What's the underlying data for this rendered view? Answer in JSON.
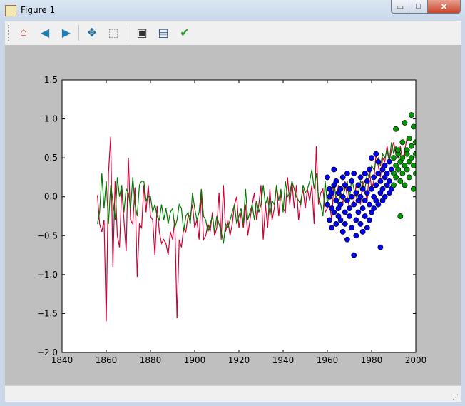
{
  "window": {
    "title": "Figure 1",
    "minimize_glyph": "▭",
    "maximize_glyph": "□",
    "close_glyph": "✕"
  },
  "toolbar": {
    "buttons": [
      {
        "name": "home",
        "icon": "home-icon",
        "glyph": "⌂",
        "color": "#c0392b"
      },
      {
        "name": "back",
        "icon": "back-arrow-icon",
        "glyph": "◀",
        "color": "#1f7fb5"
      },
      {
        "name": "forward",
        "icon": "forward-arrow-icon",
        "glyph": "▶",
        "color": "#1f7fb5"
      },
      {
        "name": "pan",
        "icon": "pan-move-icon",
        "glyph": "✥",
        "color": "#1d6fa5"
      },
      {
        "name": "zoom",
        "icon": "zoom-rectangle-icon",
        "glyph": "⬚",
        "color": "#6b8fb0"
      },
      {
        "name": "configure-subplots",
        "icon": "subplots-icon",
        "glyph": "▣",
        "color": "#333333"
      },
      {
        "name": "save",
        "icon": "save-floppy-icon",
        "glyph": "▤",
        "color": "#2c4e78"
      },
      {
        "name": "edit-axis",
        "icon": "checkmark-icon",
        "glyph": "✔",
        "color": "#22a322"
      }
    ]
  },
  "chart_data": {
    "type": "line",
    "title": "",
    "xlabel": "",
    "ylabel": "",
    "xlim": [
      1840,
      2000
    ],
    "ylim": [
      -2.0,
      1.5
    ],
    "xticks": [
      1840,
      1860,
      1880,
      1900,
      1920,
      1940,
      1960,
      1980,
      2000
    ],
    "yticks": [
      -2.0,
      -1.5,
      -1.0,
      -0.5,
      0.0,
      0.5,
      1.0,
      1.5
    ],
    "xtick_labels": [
      "1840",
      "1860",
      "1880",
      "1900",
      "1920",
      "1940",
      "1960",
      "1980",
      "2000"
    ],
    "ytick_labels": [
      "−2.0",
      "−1.5",
      "−1.0",
      "−0.5",
      "0.0",
      "0.5",
      "1.0",
      "1.5"
    ],
    "grid": false,
    "colors": {
      "red_line": "#cc0033",
      "green_line": "#007a00",
      "blue_points": "#0000ee",
      "green_points": "#009900",
      "axes_bg": "#ffffff",
      "figure_bg": "#bfbfbf"
    },
    "series": [
      {
        "kind": "line",
        "color_key": "red_line",
        "x_start": 1856,
        "y": [
          0.02,
          -0.35,
          -0.45,
          -0.3,
          -1.6,
          0.3,
          0.77,
          -0.9,
          0.2,
          -0.5,
          -0.65,
          0.1,
          -0.3,
          -0.7,
          0.5,
          -0.3,
          -0.35,
          0.12,
          -1.03,
          -0.35,
          -0.4,
          0.15,
          -0.2,
          0.15,
          -0.25,
          -0.3,
          -0.75,
          -0.12,
          -0.45,
          -0.6,
          -0.55,
          -0.6,
          -0.75,
          -0.45,
          -0.55,
          -0.3,
          -1.56,
          -0.55,
          -0.65,
          -0.4,
          -0.45,
          -0.25,
          -0.25,
          -0.1,
          -0.4,
          -0.3,
          -0.55,
          0.05,
          -0.55,
          -0.5,
          -0.35,
          -0.45,
          -0.2,
          -0.5,
          -0.4,
          0.05,
          -0.55,
          0.15,
          -0.45,
          -0.3,
          -0.5,
          -0.35,
          -0.1,
          0.0,
          -0.4,
          -0.2,
          -0.4,
          -0.1,
          -0.5,
          -0.3,
          -0.1,
          0.05,
          -0.3,
          -0.1,
          0.15,
          -0.55,
          -0.1,
          -0.4,
          0.1,
          -0.3,
          -0.15,
          0.15,
          -0.25,
          0.05,
          -0.15,
          -0.2,
          0.25,
          -0.1,
          0.2,
          -0.15,
          0.15,
          -0.3,
          -0.05,
          0.1,
          -0.15,
          0.1,
          -0.05,
          0.15,
          -0.35,
          0.65,
          -0.1,
          0.05,
          0.1,
          -0.2,
          -0.15,
          -0.1,
          -0.3,
          0.2,
          -0.05,
          0.15,
          0.05,
          -0.1,
          0.2,
          0.0,
          -0.15,
          -0.1,
          -0.05,
          0.15,
          0.0,
          -0.1,
          0.2,
          0.1,
          -0.05,
          0.35,
          0.1,
          0.2,
          0.55,
          0.4,
          0.25,
          0.5,
          0.45,
          0.65,
          0.45,
          0.6,
          0.7,
          0.55,
          0.5,
          0.65,
          0.45,
          0.6,
          0.75
        ]
      },
      {
        "kind": "line",
        "color_key": "green_line",
        "x_start": 1856,
        "y": [
          -0.35,
          -0.2,
          0.3,
          -0.15,
          0.2,
          -0.35,
          0.15,
          -0.05,
          -0.3,
          0.25,
          0.0,
          0.15,
          -0.2,
          0.1,
          0.05,
          -0.15,
          0.25,
          -0.1,
          -0.25,
          0.15,
          0.2,
          0.2,
          -0.05,
          0.0,
          0.0,
          -0.2,
          -0.1,
          -0.25,
          -0.3,
          -0.1,
          -0.3,
          -0.15,
          -0.35,
          -0.2,
          -0.15,
          -0.4,
          -0.3,
          -0.1,
          -0.15,
          -0.45,
          -0.25,
          -0.2,
          -0.35,
          0.05,
          -0.15,
          -0.3,
          -0.2,
          0.1,
          -0.25,
          -0.3,
          -0.45,
          -0.35,
          -0.25,
          -0.45,
          -0.25,
          -0.35,
          -0.45,
          -0.6,
          -0.35,
          -0.4,
          -0.3,
          -0.2,
          -0.1,
          -0.35,
          -0.25,
          -0.15,
          -0.35,
          0.1,
          -0.3,
          -0.2,
          -0.1,
          -0.3,
          -0.05,
          -0.2,
          -0.1,
          0.15,
          -0.1,
          0.0,
          -0.25,
          -0.05,
          -0.1,
          0.15,
          -0.05,
          0.1,
          -0.2,
          0.2,
          0.0,
          0.05,
          0.2,
          0.1,
          0.0,
          -0.05,
          -0.1,
          0.15,
          0.05,
          0.1,
          0.2,
          0.35,
          0.1,
          0.3,
          0.0,
          -0.1,
          -0.25,
          0.2,
          -0.1,
          0.1,
          0.05,
          0.2,
          -0.05,
          -0.1,
          0.05,
          0.0,
          0.1,
          0.2,
          -0.05,
          0.25,
          0.1,
          0.0,
          0.05,
          0.2,
          0.15,
          0.1,
          0.3,
          0.25,
          0.4,
          0.35,
          0.45,
          0.5,
          0.4,
          0.55,
          0.5,
          0.6,
          0.45,
          0.7,
          0.55,
          0.65,
          0.5
        ]
      },
      {
        "kind": "scatter",
        "color_key": "blue_points",
        "points": [
          [
            1960,
            0.25
          ],
          [
            1960,
            -0.1
          ],
          [
            1961,
            0.1
          ],
          [
            1961,
            -0.3
          ],
          [
            1961,
            0.0
          ],
          [
            1962,
            -0.15
          ],
          [
            1962,
            0.05
          ],
          [
            1962,
            -0.4
          ],
          [
            1963,
            0.35
          ],
          [
            1963,
            -0.2
          ],
          [
            1963,
            0.15
          ],
          [
            1964,
            -0.05
          ],
          [
            1964,
            -0.35
          ],
          [
            1964,
            0.2
          ],
          [
            1965,
            -0.15
          ],
          [
            1965,
            -0.25
          ],
          [
            1965,
            0.05
          ],
          [
            1966,
            0.1
          ],
          [
            1966,
            -0.3
          ],
          [
            1966,
            -0.1
          ],
          [
            1967,
            0.25
          ],
          [
            1967,
            -0.45
          ],
          [
            1967,
            0.0
          ],
          [
            1968,
            -0.2
          ],
          [
            1968,
            0.15
          ],
          [
            1968,
            -0.35
          ],
          [
            1969,
            0.3
          ],
          [
            1969,
            -0.05
          ],
          [
            1969,
            -0.55
          ],
          [
            1970,
            0.1
          ],
          [
            1970,
            -0.25
          ],
          [
            1970,
            -0.15
          ],
          [
            1971,
            0.0
          ],
          [
            1971,
            -0.4
          ],
          [
            1971,
            0.2
          ],
          [
            1972,
            -0.75
          ],
          [
            1972,
            -0.1
          ],
          [
            1972,
            0.3
          ],
          [
            1973,
            0.05
          ],
          [
            1973,
            -0.3
          ],
          [
            1973,
            -0.5
          ],
          [
            1974,
            -0.2
          ],
          [
            1974,
            0.15
          ],
          [
            1974,
            -0.05
          ],
          [
            1975,
            0.25
          ],
          [
            1975,
            -0.35
          ],
          [
            1975,
            0.0
          ],
          [
            1976,
            -0.45
          ],
          [
            1976,
            0.1
          ],
          [
            1976,
            -0.15
          ],
          [
            1977,
            0.3
          ],
          [
            1977,
            -0.05
          ],
          [
            1977,
            -0.25
          ],
          [
            1978,
            0.2
          ],
          [
            1978,
            -0.4
          ],
          [
            1978,
            0.05
          ],
          [
            1979,
            -0.1
          ],
          [
            1979,
            0.35
          ],
          [
            1979,
            -0.3
          ],
          [
            1980,
            0.1
          ],
          [
            1980,
            -0.2
          ],
          [
            1980,
            0.5
          ],
          [
            1981,
            0.0
          ],
          [
            1981,
            0.25
          ],
          [
            1981,
            -0.15
          ],
          [
            1982,
            0.55
          ],
          [
            1982,
            -0.05
          ],
          [
            1982,
            0.15
          ],
          [
            1983,
            0.3
          ],
          [
            1983,
            0.45
          ],
          [
            1983,
            -0.1
          ],
          [
            1984,
            -0.65
          ],
          [
            1984,
            0.2
          ],
          [
            1984,
            0.05
          ],
          [
            1985,
            0.35
          ],
          [
            1985,
            0.1
          ],
          [
            1985,
            -0.05
          ],
          [
            1986,
            0.25
          ],
          [
            1986,
            0.4
          ],
          [
            1986,
            0.0
          ],
          [
            1987,
            0.15
          ],
          [
            1987,
            0.3
          ],
          [
            1988,
            0.45
          ],
          [
            1988,
            0.05
          ],
          [
            1988,
            0.2
          ],
          [
            1989,
            0.35
          ],
          [
            1989,
            0.1
          ]
        ]
      },
      {
        "kind": "scatter",
        "color_key": "green_points",
        "points": [
          [
            1990,
            0.3
          ],
          [
            1990,
            0.5
          ],
          [
            1990,
            0.15
          ],
          [
            1991,
            0.87
          ],
          [
            1991,
            0.4
          ],
          [
            1991,
            0.25
          ],
          [
            1992,
            0.55
          ],
          [
            1992,
            0.35
          ],
          [
            1992,
            0.6
          ],
          [
            1993,
            0.2
          ],
          [
            1993,
            0.45
          ],
          [
            1993,
            -0.25
          ],
          [
            1994,
            0.7
          ],
          [
            1994,
            0.3
          ],
          [
            1994,
            0.5
          ],
          [
            1995,
            0.95
          ],
          [
            1995,
            0.4
          ],
          [
            1995,
            0.15
          ],
          [
            1996,
            0.6
          ],
          [
            1996,
            0.35
          ],
          [
            1996,
            0.55
          ],
          [
            1997,
            0.75
          ],
          [
            1997,
            0.25
          ],
          [
            1997,
            0.45
          ],
          [
            1998,
            1.05
          ],
          [
            1998,
            0.5
          ],
          [
            1998,
            0.65
          ],
          [
            1999,
            0.9
          ],
          [
            1999,
            0.4
          ],
          [
            1999,
            0.1
          ],
          [
            2000,
            0.55
          ],
          [
            2000,
            0.3
          ],
          [
            2000,
            0.7
          ]
        ]
      }
    ]
  }
}
